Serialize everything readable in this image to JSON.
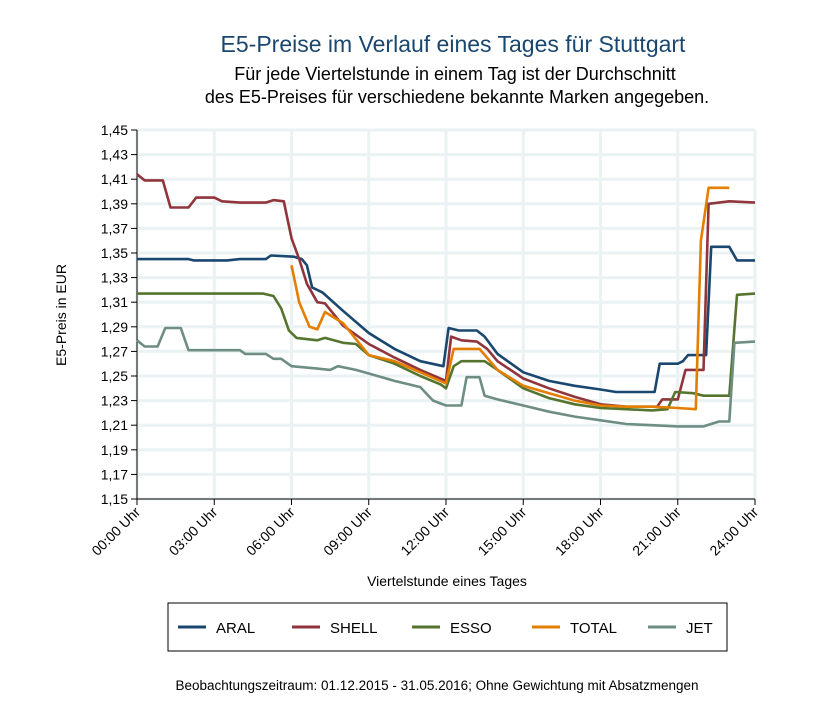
{
  "chart_data": {
    "type": "line",
    "title": "E5-Preise im Verlauf eines Tages für Stuttgart",
    "subtitle": [
      "Für jede Viertelstunde in einem Tag ist der Durchschnitt",
      "des E5-Preises für verschiedene bekannte Marken angegeben."
    ],
    "xlabel": "Viertelstunde eines Tages",
    "ylabel": "E5-Preis in EUR",
    "note": "Beobachtungszeitraum: 01.12.2015 - 31.05.2016; Ohne Gewichtung mit Absatzmengen",
    "xlim": [
      0,
      24
    ],
    "ylim": [
      1.15,
      1.45
    ],
    "grid": true,
    "legend_position": "bottom",
    "x_ticks": [
      0,
      3,
      6,
      9,
      12,
      15,
      18,
      21,
      24
    ],
    "x_tick_labels": [
      "00:00 Uhr",
      "03:00 Uhr",
      "06:00 Uhr",
      "09:00 Uhr",
      "12:00 Uhr",
      "15:00 Uhr",
      "18:00 Uhr",
      "21:00 Uhr",
      "24:00 Uhr"
    ],
    "y_ticks": [
      1.15,
      1.17,
      1.19,
      1.21,
      1.23,
      1.25,
      1.27,
      1.29,
      1.31,
      1.33,
      1.35,
      1.37,
      1.39,
      1.41,
      1.43,
      1.45
    ],
    "y_tick_labels": [
      "1,15",
      "1,17",
      "1,19",
      "1,21",
      "1,23",
      "1,25",
      "1,27",
      "1,29",
      "1,31",
      "1,33",
      "1,35",
      "1,37",
      "1,39",
      "1,41",
      "1,43",
      "1,45"
    ],
    "series": [
      {
        "name": "ARAL",
        "color": "#1a476f",
        "points": [
          [
            0,
            1.345
          ],
          [
            2,
            1.345
          ],
          [
            2.2,
            1.344
          ],
          [
            3.5,
            1.344
          ],
          [
            4,
            1.345
          ],
          [
            5,
            1.345
          ],
          [
            5.2,
            1.348
          ],
          [
            6.1,
            1.347
          ],
          [
            6.4,
            1.345
          ],
          [
            6.6,
            1.34
          ],
          [
            6.8,
            1.322
          ],
          [
            7.2,
            1.318
          ],
          [
            8,
            1.303
          ],
          [
            9,
            1.285
          ],
          [
            10,
            1.272
          ],
          [
            11,
            1.262
          ],
          [
            11.9,
            1.258
          ],
          [
            12.1,
            1.289
          ],
          [
            12.5,
            1.287
          ],
          [
            13.2,
            1.287
          ],
          [
            13.5,
            1.282
          ],
          [
            14,
            1.268
          ],
          [
            15,
            1.253
          ],
          [
            16,
            1.246
          ],
          [
            17,
            1.242
          ],
          [
            18,
            1.239
          ],
          [
            18.6,
            1.237
          ],
          [
            20.1,
            1.237
          ],
          [
            20.3,
            1.26
          ],
          [
            21,
            1.26
          ],
          [
            21.2,
            1.262
          ],
          [
            21.4,
            1.267
          ],
          [
            22.1,
            1.267
          ],
          [
            22.3,
            1.355
          ],
          [
            23,
            1.355
          ],
          [
            23.3,
            1.344
          ],
          [
            24,
            1.344
          ]
        ]
      },
      {
        "name": "SHELL",
        "color": "#90353b",
        "points": [
          [
            0,
            1.414
          ],
          [
            0.3,
            1.409
          ],
          [
            1,
            1.409
          ],
          [
            1.3,
            1.387
          ],
          [
            2,
            1.387
          ],
          [
            2.3,
            1.395
          ],
          [
            3,
            1.395
          ],
          [
            3.3,
            1.392
          ],
          [
            4,
            1.391
          ],
          [
            5,
            1.391
          ],
          [
            5.3,
            1.393
          ],
          [
            5.7,
            1.392
          ],
          [
            6,
            1.362
          ],
          [
            6.3,
            1.345
          ],
          [
            6.6,
            1.325
          ],
          [
            7,
            1.31
          ],
          [
            7.3,
            1.309
          ],
          [
            8,
            1.291
          ],
          [
            9,
            1.276
          ],
          [
            10,
            1.265
          ],
          [
            11,
            1.255
          ],
          [
            12,
            1.246
          ],
          [
            12.2,
            1.282
          ],
          [
            12.6,
            1.279
          ],
          [
            13.2,
            1.278
          ],
          [
            13.6,
            1.272
          ],
          [
            14,
            1.262
          ],
          [
            15,
            1.248
          ],
          [
            16,
            1.24
          ],
          [
            17,
            1.233
          ],
          [
            18,
            1.227
          ],
          [
            19,
            1.225
          ],
          [
            20.2,
            1.225
          ],
          [
            20.4,
            1.231
          ],
          [
            21,
            1.231
          ],
          [
            21.3,
            1.255
          ],
          [
            22,
            1.255
          ],
          [
            22.2,
            1.39
          ],
          [
            22.6,
            1.391
          ],
          [
            23,
            1.392
          ],
          [
            24,
            1.391
          ]
        ]
      },
      {
        "name": "ESSO",
        "color": "#55752f",
        "points": [
          [
            0,
            1.317
          ],
          [
            4.9,
            1.317
          ],
          [
            5.3,
            1.315
          ],
          [
            5.6,
            1.305
          ],
          [
            5.9,
            1.287
          ],
          [
            6.2,
            1.281
          ],
          [
            7,
            1.279
          ],
          [
            7.3,
            1.281
          ],
          [
            8,
            1.277
          ],
          [
            8.5,
            1.276
          ],
          [
            9,
            1.267
          ],
          [
            10,
            1.26
          ],
          [
            11,
            1.25
          ],
          [
            11.8,
            1.243
          ],
          [
            12,
            1.24
          ],
          [
            12.3,
            1.258
          ],
          [
            12.6,
            1.262
          ],
          [
            13.5,
            1.262
          ],
          [
            14,
            1.255
          ],
          [
            15,
            1.24
          ],
          [
            16,
            1.232
          ],
          [
            17,
            1.227
          ],
          [
            18,
            1.224
          ],
          [
            19,
            1.223
          ],
          [
            20,
            1.222
          ],
          [
            20.6,
            1.223
          ],
          [
            20.9,
            1.237
          ],
          [
            21.6,
            1.236
          ],
          [
            22,
            1.234
          ],
          [
            23,
            1.234
          ],
          [
            23.3,
            1.316
          ],
          [
            24,
            1.317
          ]
        ]
      },
      {
        "name": "TOTAL",
        "color": "#e37e00",
        "points": [
          [
            6,
            1.34
          ],
          [
            6.3,
            1.31
          ],
          [
            6.7,
            1.29
          ],
          [
            7,
            1.288
          ],
          [
            7.3,
            1.302
          ],
          [
            8,
            1.293
          ],
          [
            9,
            1.267
          ],
          [
            10,
            1.262
          ],
          [
            11,
            1.253
          ],
          [
            12,
            1.244
          ],
          [
            12.3,
            1.272
          ],
          [
            13.3,
            1.272
          ],
          [
            14,
            1.255
          ],
          [
            15,
            1.242
          ],
          [
            16,
            1.236
          ],
          [
            17,
            1.23
          ],
          [
            18,
            1.226
          ],
          [
            19,
            1.225
          ],
          [
            20,
            1.225
          ],
          [
            21,
            1.224
          ],
          [
            21.7,
            1.223
          ],
          [
            21.9,
            1.36
          ],
          [
            22.2,
            1.403
          ],
          [
            23,
            1.403
          ]
        ]
      },
      {
        "name": "JET",
        "color": "#6e8e84",
        "points": [
          [
            0,
            1.279
          ],
          [
            0.3,
            1.274
          ],
          [
            0.8,
            1.274
          ],
          [
            1.1,
            1.289
          ],
          [
            1.7,
            1.289
          ],
          [
            2,
            1.271
          ],
          [
            3,
            1.271
          ],
          [
            4,
            1.271
          ],
          [
            4.2,
            1.268
          ],
          [
            5,
            1.268
          ],
          [
            5.3,
            1.264
          ],
          [
            5.6,
            1.264
          ],
          [
            6,
            1.258
          ],
          [
            7,
            1.256
          ],
          [
            7.5,
            1.255
          ],
          [
            7.8,
            1.258
          ],
          [
            8.5,
            1.255
          ],
          [
            9,
            1.252
          ],
          [
            10,
            1.246
          ],
          [
            11,
            1.241
          ],
          [
            11.5,
            1.23
          ],
          [
            12,
            1.226
          ],
          [
            12.6,
            1.226
          ],
          [
            12.8,
            1.249
          ],
          [
            13.3,
            1.249
          ],
          [
            13.5,
            1.234
          ],
          [
            14,
            1.231
          ],
          [
            15,
            1.226
          ],
          [
            16,
            1.221
          ],
          [
            17,
            1.217
          ],
          [
            18,
            1.214
          ],
          [
            19,
            1.211
          ],
          [
            20,
            1.21
          ],
          [
            21,
            1.209
          ],
          [
            22,
            1.209
          ],
          [
            22.6,
            1.213
          ],
          [
            23,
            1.213
          ],
          [
            23.2,
            1.277
          ],
          [
            24,
            1.278
          ]
        ]
      }
    ]
  }
}
